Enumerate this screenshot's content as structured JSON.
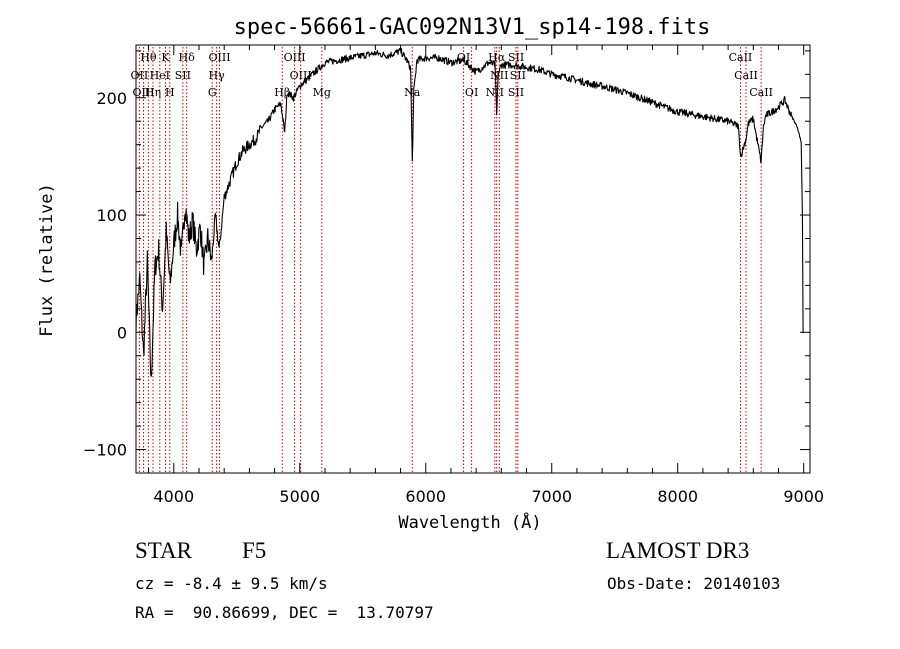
{
  "chart_data": {
    "type": "line",
    "title": "spec-56661-GAC092N13V1_sp14-198.fits",
    "xlabel": "Wavelength (Å)",
    "ylabel": "Flux (relative)",
    "xlim": [
      3700,
      9050
    ],
    "ylim": [
      -120,
      245
    ],
    "xticks": [
      4000,
      5000,
      6000,
      7000,
      8000,
      9000
    ],
    "yticks": [
      -100,
      0,
      100,
      200
    ],
    "series": [
      {
        "name": "flux",
        "x": [
          3700,
          3730,
          3760,
          3790,
          3820,
          3850,
          3880,
          3910,
          3940,
          3970,
          4000,
          4030,
          4060,
          4090,
          4120,
          4150,
          4180,
          4210,
          4240,
          4270,
          4300,
          4330,
          4360,
          4400,
          4450,
          4500,
          4550,
          4600,
          4650,
          4700,
          4750,
          4800,
          4850,
          4880,
          4900,
          4950,
          5000,
          5050,
          5100,
          5150,
          5200,
          5300,
          5400,
          5500,
          5600,
          5700,
          5800,
          5850,
          5880,
          5893,
          5905,
          5930,
          6000,
          6100,
          6200,
          6300,
          6400,
          6500,
          6550,
          6563,
          6575,
          6600,
          6700,
          6800,
          6900,
          7000,
          7100,
          7200,
          7300,
          7400,
          7500,
          7600,
          7700,
          7800,
          7900,
          8000,
          8100,
          8200,
          8300,
          8400,
          8480,
          8500,
          8542,
          8560,
          8600,
          8662,
          8680,
          8700,
          8750,
          8800,
          8850,
          8900,
          8950,
          8980,
          8990,
          8995,
          9000
        ],
        "y": [
          10,
          45,
          -20,
          60,
          -45,
          55,
          70,
          20,
          85,
          40,
          75,
          100,
          65,
          110,
          80,
          95,
          70,
          90,
          55,
          80,
          60,
          100,
          70,
          115,
          130,
          145,
          155,
          160,
          165,
          175,
          180,
          190,
          195,
          170,
          205,
          200,
          210,
          215,
          220,
          225,
          230,
          232,
          234,
          236,
          238,
          236,
          240,
          232,
          225,
          145,
          205,
          232,
          234,
          234,
          230,
          232,
          222,
          230,
          228,
          185,
          220,
          228,
          228,
          226,
          224,
          220,
          218,
          215,
          212,
          210,
          207,
          204,
          200,
          196,
          192,
          188,
          186,
          184,
          182,
          180,
          176,
          150,
          165,
          178,
          182,
          145,
          175,
          185,
          188,
          192,
          198,
          185,
          175,
          162,
          100,
          0,
          0
        ]
      }
    ],
    "line_markers": [
      {
        "label": "Hθ",
        "wavelength": 3798,
        "row": 0
      },
      {
        "label": "K",
        "wavelength": 3934,
        "row": 0
      },
      {
        "label": "Hδ",
        "wavelength": 4102,
        "row": 0
      },
      {
        "label": "OIII",
        "wavelength": 4363,
        "row": 0
      },
      {
        "label": "OIII",
        "wavelength": 4959,
        "row": 0
      },
      {
        "label": "OI",
        "wavelength": 6300,
        "row": 0
      },
      {
        "label": "Hα",
        "wavelength": 6563,
        "row": 0
      },
      {
        "label": "SII",
        "wavelength": 6717,
        "row": 0
      },
      {
        "label": "CaII",
        "wavelength": 8498,
        "row": 0
      },
      {
        "label": "OII",
        "wavelength": 3727,
        "row": 1
      },
      {
        "label": "HeI",
        "wavelength": 3889,
        "row": 1
      },
      {
        "label": "SII",
        "wavelength": 4072,
        "row": 1
      },
      {
        "label": "Hγ",
        "wavelength": 4340,
        "row": 1
      },
      {
        "label": "OIII",
        "wavelength": 5007,
        "row": 1
      },
      {
        "label": "NII",
        "wavelength": 6584,
        "row": 1
      },
      {
        "label": "SII",
        "wavelength": 6731,
        "row": 1
      },
      {
        "label": "CaII",
        "wavelength": 8542,
        "row": 1
      },
      {
        "label": "OIII",
        "wavelength": 3760,
        "row": 2
      },
      {
        "label": "Hη",
        "wavelength": 3835,
        "row": 2
      },
      {
        "label": "H",
        "wavelength": 3968,
        "row": 2
      },
      {
        "label": "G",
        "wavelength": 4305,
        "row": 2
      },
      {
        "label": "Hβ",
        "wavelength": 4861,
        "row": 2
      },
      {
        "label": "Mg",
        "wavelength": 5175,
        "row": 2
      },
      {
        "label": "Na",
        "wavelength": 5893,
        "row": 2
      },
      {
        "label": "OI",
        "wavelength": 6364,
        "row": 2
      },
      {
        "label": "NII",
        "wavelength": 6548,
        "row": 2
      },
      {
        "label": "SII",
        "wavelength": 6716,
        "row": 2
      },
      {
        "label": "CaII",
        "wavelength": 8662,
        "row": 2
      }
    ]
  },
  "info": {
    "object_class": "STAR",
    "subclass": "F5",
    "survey": "LAMOST DR3",
    "cz": "cz = -8.4 ± 9.5 km/s",
    "obs_date": "Obs-Date: 20140103",
    "coords": "RA =  90.86699, DEC =  13.70797"
  },
  "colors": {
    "axis": "#000000",
    "spectrum": "#000000",
    "marker": "#cc0000",
    "background": "#ffffff"
  }
}
